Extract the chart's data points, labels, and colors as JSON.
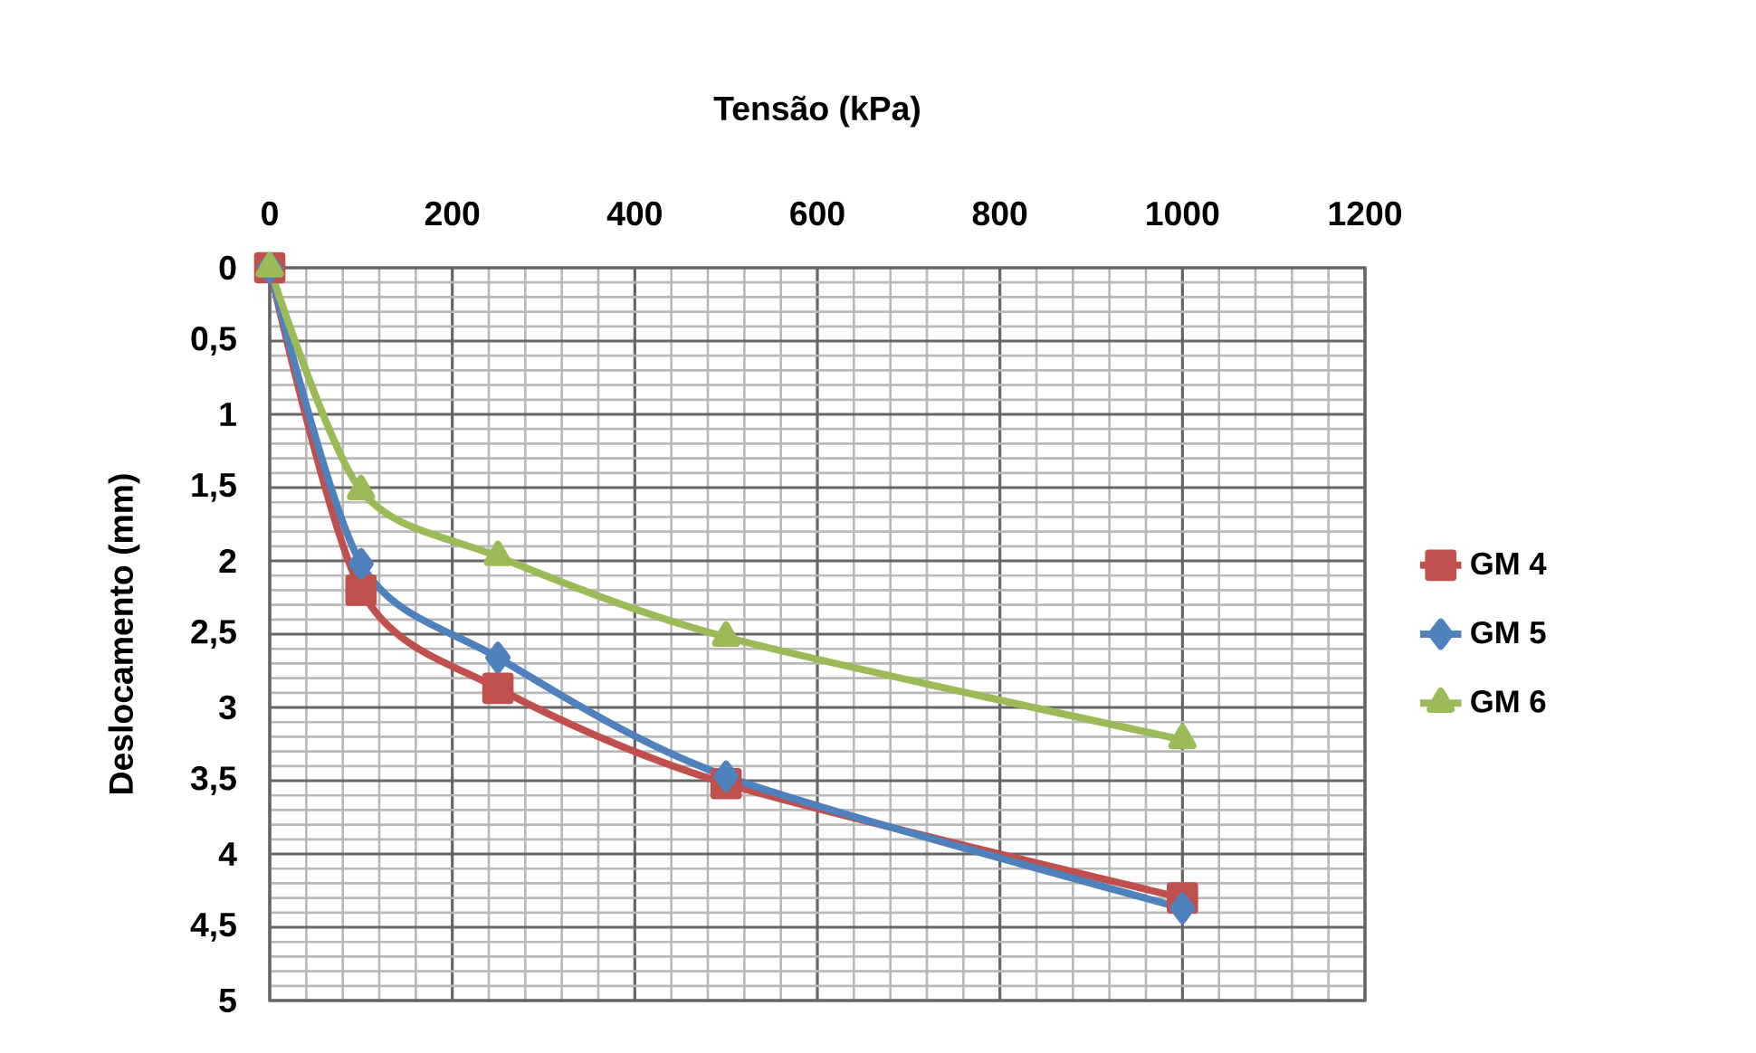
{
  "chart_data": {
    "type": "line",
    "xlabel": "Tensão (kPa)",
    "ylabel": "Deslocamento (mm)",
    "xlim": [
      0,
      1200
    ],
    "xticks": [
      0,
      200,
      400,
      600,
      800,
      1000,
      1200
    ],
    "ylim": [
      5,
      0
    ],
    "yticks": [
      0,
      {
        "value": 0.5,
        "label": "0,5"
      },
      1,
      {
        "value": 1.5,
        "label": "1,5"
      },
      2,
      {
        "value": 2.5,
        "label": "2,5"
      },
      3,
      {
        "value": 3.5,
        "label": "3,5"
      },
      4,
      {
        "value": 4.5,
        "label": "4,5"
      },
      5
    ],
    "grid": true,
    "legend": "right",
    "x": [
      0,
      100,
      250,
      500,
      1000
    ],
    "series": [
      {
        "name": "GM 4",
        "color": "#c0504d",
        "marker": "square",
        "values": [
          0,
          2.2,
          2.87,
          3.52,
          4.3
        ]
      },
      {
        "name": "GM 5",
        "color": "#4f81bd",
        "marker": "diamond",
        "values": [
          0,
          2.02,
          2.66,
          3.47,
          4.37
        ]
      },
      {
        "name": "GM 6",
        "color": "#9bbb59",
        "marker": "triangle",
        "values": [
          0,
          1.52,
          1.97,
          2.52,
          3.22
        ]
      }
    ]
  }
}
